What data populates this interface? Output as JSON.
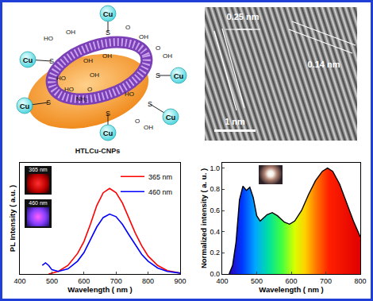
{
  "schematic": {
    "caption": "HTLCu-CNPs",
    "metal": [
      "Cu",
      "Cu",
      "Cu",
      "Cu",
      "Cu",
      "Cu"
    ],
    "linker": [
      "S",
      "S",
      "S",
      "S",
      "S",
      "S"
    ],
    "groups": [
      "HO",
      "OH",
      "O",
      "OH",
      "OH",
      "OH",
      "OH",
      "O",
      "OH",
      "HO",
      "O",
      "NH₂",
      "HO",
      "O",
      "OH",
      "HO"
    ]
  },
  "tem": {
    "spacings": [
      "0.25 nm",
      "0.14 nm"
    ],
    "scale_bar": "1 nm"
  },
  "chart_data": [
    {
      "type": "line",
      "x_label": "Wavelength ( nm )",
      "y_label": "PL Intensity ( a.u. )",
      "xlim": [
        400,
        900
      ],
      "xticks": [
        400,
        500,
        600,
        700,
        800,
        900
      ],
      "ylim": [
        0,
        1.3
      ],
      "tick_labels": "x",
      "legend": "top-right",
      "annotations": [
        "365 nm",
        "460 nm"
      ],
      "series": [
        {
          "name": "365 nm",
          "color": "red",
          "x": [
            490,
            520,
            550,
            580,
            600,
            620,
            640,
            660,
            680,
            700,
            720,
            740,
            760,
            780,
            800,
            830,
            860,
            900
          ],
          "values": [
            0.0,
            0.03,
            0.1,
            0.24,
            0.38,
            0.58,
            0.8,
            0.95,
            1.0,
            0.95,
            0.83,
            0.66,
            0.48,
            0.33,
            0.21,
            0.1,
            0.04,
            0.01
          ]
        },
        {
          "name": "460 nm",
          "color": "blue",
          "x": [
            470,
            480,
            490,
            500,
            520,
            550,
            580,
            600,
            620,
            640,
            660,
            680,
            700,
            720,
            740,
            760,
            780,
            800,
            830,
            860,
            900
          ],
          "values": [
            0.1,
            0.13,
            0.1,
            0.05,
            0.03,
            0.06,
            0.15,
            0.25,
            0.4,
            0.55,
            0.66,
            0.7,
            0.67,
            0.58,
            0.46,
            0.34,
            0.23,
            0.15,
            0.07,
            0.03,
            0.01
          ]
        }
      ]
    },
    {
      "type": "area",
      "x_label": "Wavelength ( nm )",
      "y_label": "Normalized intensity ( a. u. )",
      "xlim": [
        400,
        800
      ],
      "xticks": [
        400,
        500,
        600,
        700,
        800
      ],
      "ylim": [
        0,
        1.05
      ],
      "yticks": [
        {
          "value": 0,
          "label": "0.0"
        },
        0.2,
        0.4,
        0.6,
        0.8,
        {
          "value": 1,
          "label": "1.0"
        }
      ],
      "color": "black",
      "x": [
        420,
        430,
        440,
        450,
        460,
        470,
        480,
        490,
        500,
        510,
        530,
        545,
        560,
        580,
        595,
        610,
        630,
        650,
        670,
        690,
        705,
        720,
        740,
        760,
        780,
        800
      ],
      "values": [
        0.0,
        0.08,
        0.3,
        0.7,
        0.83,
        0.79,
        0.82,
        0.72,
        0.55,
        0.5,
        0.56,
        0.58,
        0.55,
        0.49,
        0.47,
        0.5,
        0.6,
        0.75,
        0.88,
        0.97,
        1.0,
        0.97,
        0.85,
        0.68,
        0.5,
        0.35
      ]
    }
  ]
}
